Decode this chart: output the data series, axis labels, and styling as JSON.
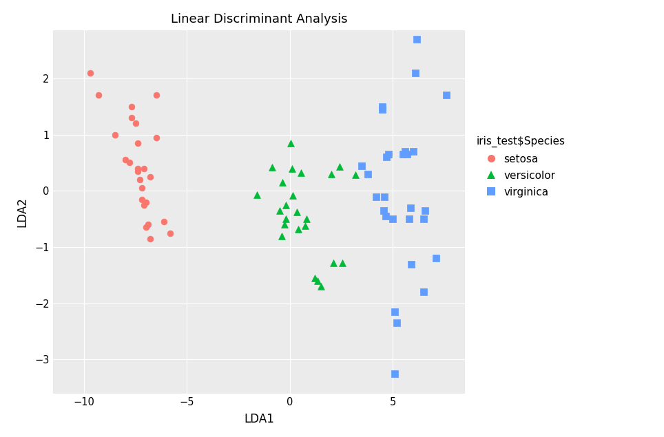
{
  "title": "Linear Discriminant Analysis",
  "xlabel": "LDA1",
  "ylabel": "LDA2",
  "legend_title": "iris_test$Species",
  "xlim": [
    -11.5,
    8.5
  ],
  "ylim": [
    -3.6,
    2.85
  ],
  "xticks": [
    -10,
    -5,
    0,
    5
  ],
  "yticks": [
    -3,
    -2,
    -1,
    0,
    1,
    2
  ],
  "bg_color": "#EBEBEB",
  "panel_bg": "#EBEBEB",
  "fig_bg": "#FFFFFF",
  "grid_color": "#FFFFFF",
  "setosa_color": "#F8766D",
  "versicolor_color": "#00BA38",
  "virginica_color": "#619CFF",
  "setosa": {
    "x": [
      -9.7,
      -9.3,
      -8.5,
      -8.0,
      -7.8,
      -7.7,
      -7.7,
      -7.5,
      -7.4,
      -7.4,
      -7.4,
      -7.3,
      -7.2,
      -7.2,
      -7.1,
      -7.1,
      -7.0,
      -7.0,
      -6.9,
      -6.8,
      -6.8,
      -6.5,
      -6.5,
      -6.1,
      -5.8
    ],
    "y": [
      2.1,
      1.7,
      1.0,
      0.55,
      0.5,
      1.5,
      1.3,
      1.2,
      0.85,
      0.4,
      0.35,
      0.2,
      0.05,
      -0.15,
      -0.25,
      0.4,
      -0.2,
      -0.65,
      -0.6,
      -0.85,
      0.25,
      1.7,
      0.95,
      -0.55,
      -0.75
    ]
  },
  "versicolor": {
    "x": [
      -1.6,
      -0.85,
      -0.5,
      -0.4,
      -0.35,
      -0.25,
      -0.2,
      -0.2,
      0.05,
      0.1,
      0.15,
      0.35,
      0.4,
      0.55,
      0.75,
      0.8,
      1.2,
      1.35,
      1.5,
      2.0,
      2.1,
      2.4,
      2.55,
      3.2
    ],
    "y": [
      -0.07,
      0.42,
      -0.35,
      -0.8,
      0.15,
      -0.6,
      -0.5,
      -0.25,
      0.85,
      0.4,
      -0.08,
      -0.38,
      -0.68,
      0.32,
      -0.62,
      -0.5,
      -1.55,
      -1.6,
      -1.7,
      0.3,
      -1.28,
      0.43,
      -1.28,
      0.28
    ]
  },
  "virginica": {
    "x": [
      3.5,
      3.8,
      4.2,
      4.5,
      4.5,
      4.55,
      4.6,
      4.65,
      4.7,
      4.8,
      5.0,
      5.1,
      5.1,
      5.2,
      5.5,
      5.6,
      5.7,
      5.8,
      5.85,
      5.9,
      6.0,
      6.1,
      6.15,
      6.5,
      6.5,
      6.55,
      7.1,
      7.6
    ],
    "y": [
      0.45,
      0.3,
      -0.1,
      1.45,
      1.5,
      -0.35,
      -0.1,
      -0.45,
      0.6,
      0.65,
      -0.5,
      -2.15,
      -3.25,
      -2.35,
      0.65,
      0.7,
      0.65,
      -0.5,
      -0.3,
      -1.3,
      0.7,
      2.1,
      2.7,
      -0.5,
      -1.8,
      -0.35,
      -1.2,
      1.7
    ]
  }
}
